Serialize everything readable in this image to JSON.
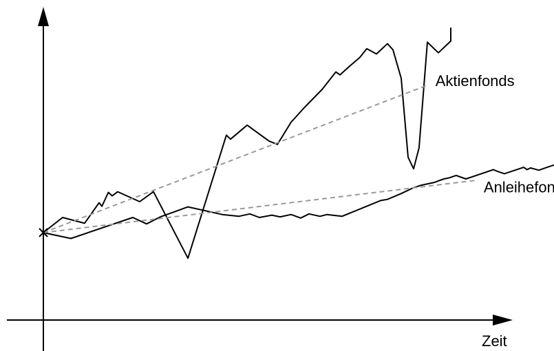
{
  "chart_data": {
    "type": "line",
    "title": "",
    "xlabel": "Zeit",
    "ylabel": "",
    "grid": false,
    "ticks": false,
    "colors": {
      "series": "#000000",
      "trend": "#999999",
      "axes": "#000000"
    },
    "series": [
      {
        "name": "Aktienfonds",
        "style": "solid",
        "points": [
          [
            0,
            0
          ],
          [
            2.07,
            1.51
          ],
          [
            4.44,
            0.93
          ],
          [
            6.0,
            2.97
          ],
          [
            6.3,
            2.62
          ],
          [
            7.0,
            4.01
          ],
          [
            7.41,
            3.66
          ],
          [
            8.0,
            4.07
          ],
          [
            10.37,
            3.08
          ],
          [
            11.85,
            4.07
          ],
          [
            15.56,
            -2.55
          ],
          [
            19.7,
            9.7
          ],
          [
            20.15,
            9.3
          ],
          [
            21.93,
            10.7
          ],
          [
            24.3,
            9.1
          ],
          [
            25.19,
            8.78
          ],
          [
            26.67,
            10.99
          ],
          [
            28.15,
            12.5
          ],
          [
            30.0,
            14.25
          ],
          [
            31.48,
            15.99
          ],
          [
            31.93,
            15.7
          ],
          [
            32.89,
            16.51
          ],
          [
            34.07,
            17.44
          ],
          [
            34.81,
            18.3
          ],
          [
            35.85,
            17.78
          ],
          [
            37.04,
            18.8
          ],
          [
            37.63,
            18.2
          ],
          [
            38.52,
            15.35
          ],
          [
            39.26,
            7.5
          ],
          [
            39.85,
            6.35
          ],
          [
            40.44,
            8.43
          ],
          [
            41.33,
            18.95
          ],
          [
            42.52,
            17.9
          ],
          [
            43.85,
            19.07
          ],
          [
            43.85,
            20.41
          ]
        ]
      },
      {
        "name": "Anleihefonds",
        "style": "solid",
        "points": [
          [
            0,
            0
          ],
          [
            2.96,
            -0.58
          ],
          [
            9.63,
            1.51
          ],
          [
            11.11,
            0.87
          ],
          [
            12.59,
            1.57
          ],
          [
            15.56,
            2.56
          ],
          [
            19.26,
            1.8
          ],
          [
            21.04,
            1.62
          ],
          [
            22.22,
            1.86
          ],
          [
            23.26,
            1.51
          ],
          [
            24.59,
            1.74
          ],
          [
            25.48,
            1.57
          ],
          [
            26.67,
            1.8
          ],
          [
            27.7,
            1.45
          ],
          [
            28.59,
            1.86
          ],
          [
            29.78,
            1.62
          ],
          [
            30.52,
            1.8
          ],
          [
            32.15,
            1.62
          ],
          [
            36.3,
            3.19
          ],
          [
            37.04,
            3.31
          ],
          [
            38.52,
            3.89
          ],
          [
            39.7,
            4.41
          ],
          [
            40.59,
            4.7
          ],
          [
            42.07,
            4.99
          ],
          [
            43.11,
            5.34
          ],
          [
            43.7,
            5.46
          ],
          [
            44.44,
            5.69
          ],
          [
            45.48,
            5.34
          ],
          [
            48.44,
            6.27
          ],
          [
            48.89,
            6.09
          ],
          [
            49.63,
            5.86
          ],
          [
            51.7,
            6.5
          ],
          [
            52.07,
            6.27
          ],
          [
            52.44,
            6.44
          ],
          [
            53.33,
            6.21
          ],
          [
            54.22,
            6.5
          ],
          [
            55.7,
            6.96
          ],
          [
            57.78,
            5.69
          ]
        ]
      },
      {
        "name": "",
        "style": "dashed",
        "points": [
          [
            0,
            0
          ],
          [
            41.33,
            14.67
          ]
        ]
      },
      {
        "name": "",
        "style": "dashed",
        "points": [
          [
            0,
            0
          ],
          [
            46.67,
            5.22
          ]
        ]
      }
    ],
    "annotations": [
      {
        "text": "Aktienfonds",
        "x": 42.2,
        "y": 14.6
      },
      {
        "text": "Anleihefonds",
        "x": 47.4,
        "y": 4.0
      }
    ]
  }
}
